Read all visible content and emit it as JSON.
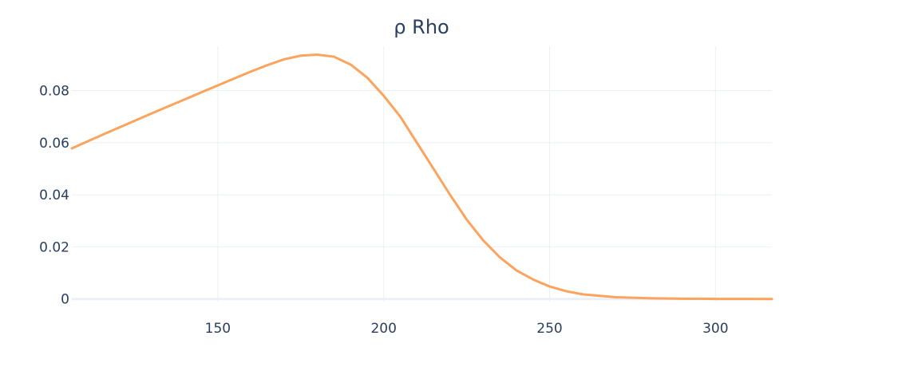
{
  "chart_data": {
    "type": "line",
    "title": "ρ Rho",
    "xlabel": "",
    "ylabel": "",
    "xlim": [
      106,
      317
    ],
    "ylim": [
      -0.001,
      0.097
    ],
    "x_ticks": [
      150,
      200,
      250,
      300
    ],
    "x_tick_labels": [
      "150",
      "200",
      "250",
      "300"
    ],
    "y_ticks": [
      0,
      0.02,
      0.04,
      0.06,
      0.08
    ],
    "y_tick_labels": [
      "0",
      "0.02",
      "0.04",
      "0.06",
      "0.08"
    ],
    "grid": true,
    "legend": "none",
    "series": [
      {
        "name": "rho",
        "color": "#fca35e",
        "x": [
          106,
          110,
          120,
          130,
          140,
          150,
          160,
          165,
          170,
          175,
          180,
          185,
          190,
          195,
          200,
          205,
          210,
          215,
          220,
          225,
          230,
          235,
          240,
          245,
          250,
          255,
          260,
          270,
          280,
          290,
          300,
          310,
          317
        ],
        "y": [
          0.0578,
          0.0601,
          0.0657,
          0.0712,
          0.0766,
          0.082,
          0.0873,
          0.0898,
          0.092,
          0.0934,
          0.0938,
          0.093,
          0.09,
          0.085,
          0.078,
          0.07,
          0.06,
          0.05,
          0.04,
          0.0305,
          0.0225,
          0.016,
          0.011,
          0.0075,
          0.0048,
          0.003,
          0.0018,
          0.0007,
          0.0003,
          0.0001,
          5e-05,
          2e-05,
          0.0
        ]
      }
    ]
  }
}
